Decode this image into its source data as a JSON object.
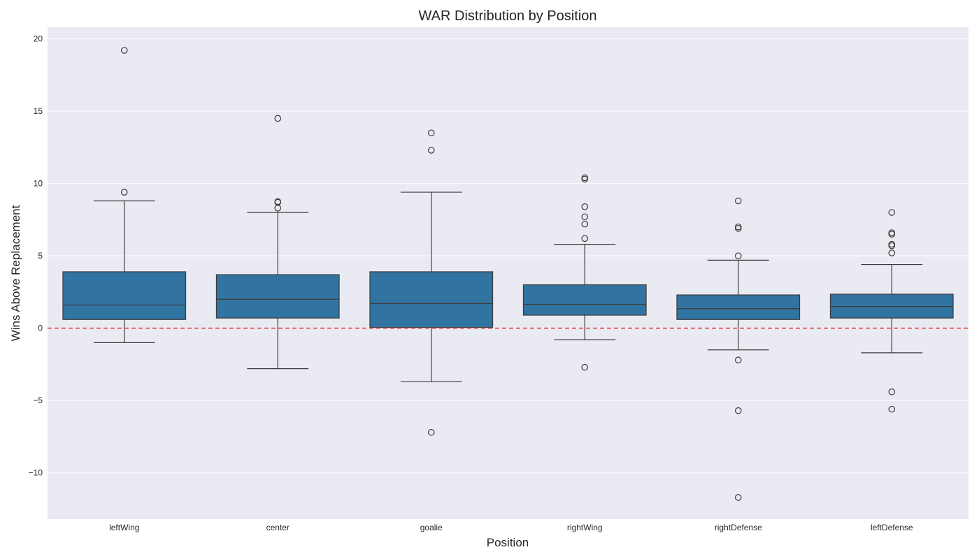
{
  "chart_data": {
    "type": "box",
    "title": "WAR Distribution by Position",
    "xlabel": "Position",
    "ylabel": "Wins Above Replacement",
    "ylim": [
      -13.2,
      20.8
    ],
    "yticks": [
      -10,
      -5,
      0,
      5,
      10,
      15,
      20
    ],
    "ytick_labels": [
      "−10",
      "−5",
      "0",
      "5",
      "10",
      "15",
      "20"
    ],
    "reference_line": {
      "y": 0,
      "color": "#e8413f",
      "style": "dashed"
    },
    "grid": true,
    "box_color": "#3274a1",
    "categories": [
      "leftWing",
      "center",
      "goalie",
      "rightWing",
      "rightDefense",
      "leftDefense"
    ],
    "boxes": [
      {
        "q1": 0.6,
        "median": 1.6,
        "q3": 3.9,
        "whisker_low": -1.0,
        "whisker_high": 8.8,
        "outliers": [
          9.4,
          19.2
        ]
      },
      {
        "q1": 0.7,
        "median": 2.0,
        "q3": 3.7,
        "whisker_low": -2.8,
        "whisker_high": 8.0,
        "outliers": [
          8.3,
          8.7,
          8.75,
          14.5
        ]
      },
      {
        "q1": 0.05,
        "median": 1.7,
        "q3": 3.9,
        "whisker_low": -3.7,
        "whisker_high": 9.4,
        "outliers": [
          -7.2,
          12.3,
          13.5
        ]
      },
      {
        "q1": 0.9,
        "median": 1.65,
        "q3": 3.0,
        "whisker_low": -0.8,
        "whisker_high": 5.8,
        "outliers": [
          -2.7,
          6.2,
          7.2,
          7.7,
          8.4,
          10.3,
          10.4
        ]
      },
      {
        "q1": 0.6,
        "median": 1.35,
        "q3": 2.3,
        "whisker_low": -1.5,
        "whisker_high": 4.7,
        "outliers": [
          -11.7,
          -5.7,
          -2.2,
          5.0,
          6.9,
          7.0,
          8.8
        ]
      },
      {
        "q1": 0.7,
        "median": 1.5,
        "q3": 2.35,
        "whisker_low": -1.7,
        "whisker_high": 4.4,
        "outliers": [
          -5.6,
          -4.4,
          5.2,
          5.7,
          5.8,
          6.5,
          6.6,
          8.0
        ]
      }
    ]
  }
}
